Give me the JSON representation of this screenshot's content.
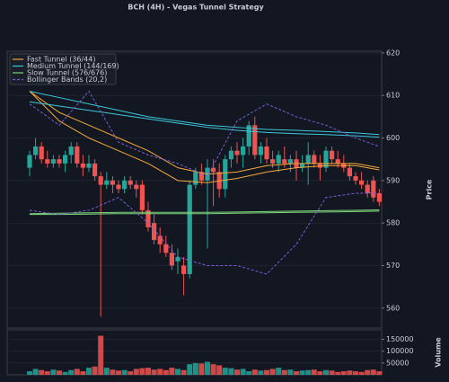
{
  "chart_data": {
    "type": "candlestick",
    "title": "BCH (4H) - Vegas Tunnel Strategy",
    "ylabel": "Price",
    "volume_label": "Volume",
    "up_color": "#26a69a",
    "down_color": "#ef5350",
    "open": [
      593,
      596,
      598,
      595,
      594,
      595,
      594,
      596,
      598,
      594,
      593,
      594,
      591,
      589,
      590,
      589,
      588,
      590,
      589,
      589,
      583,
      580,
      577,
      575,
      573,
      571,
      570,
      568,
      589,
      592,
      590,
      593,
      592,
      588,
      595,
      597,
      596,
      598,
      603,
      596,
      598,
      595,
      594,
      595,
      594,
      595,
      593,
      594,
      596,
      594,
      593,
      597,
      595,
      594,
      593,
      591,
      590,
      589,
      590,
      587
    ],
    "high": [
      597,
      600,
      599,
      597,
      596,
      596,
      597,
      599,
      599,
      596,
      596,
      595,
      592,
      592,
      591,
      590,
      591,
      591,
      590,
      590,
      585,
      582,
      579,
      577,
      575,
      574,
      572,
      590,
      593,
      594,
      595,
      595,
      594,
      596,
      598,
      599,
      600,
      604,
      605,
      599,
      600,
      597,
      597,
      598,
      596,
      597,
      596,
      599,
      597,
      596,
      598,
      598,
      597,
      596,
      594,
      592,
      592,
      590,
      591,
      588
    ],
    "low": [
      591,
      595,
      594,
      593,
      593,
      593,
      592,
      594,
      593,
      591,
      592,
      590,
      558,
      588,
      587,
      587,
      587,
      588,
      586,
      582,
      578,
      575,
      573,
      572,
      569,
      568,
      563,
      567,
      588,
      589,
      574,
      584,
      586,
      586,
      593,
      594,
      593,
      596,
      595,
      594,
      594,
      593,
      592,
      593,
      592,
      590,
      592,
      589,
      593,
      590,
      592,
      594,
      593,
      592,
      590,
      589,
      588,
      586,
      585,
      584
    ],
    "close": [
      596,
      598,
      595,
      594,
      595,
      594,
      596,
      598,
      594,
      593,
      594,
      591,
      589,
      590,
      589,
      588,
      590,
      589,
      588,
      583,
      579,
      576,
      575,
      573,
      570,
      572,
      568,
      589,
      592,
      590,
      593,
      592,
      588,
      595,
      597,
      596,
      598,
      603,
      596,
      598,
      595,
      594,
      596,
      594,
      595,
      593,
      594,
      596,
      594,
      593,
      597,
      595,
      594,
      593,
      591,
      590,
      589,
      587,
      586,
      585
    ],
    "volume": [
      15000,
      25000,
      20000,
      15000,
      22000,
      18000,
      12000,
      20000,
      25000,
      15000,
      30000,
      35000,
      165000,
      30000,
      22000,
      18000,
      20000,
      15000,
      25000,
      28000,
      30000,
      22000,
      25000,
      20000,
      30000,
      25000,
      20000,
      45000,
      50000,
      48000,
      55000,
      45000,
      40000,
      30000,
      28000,
      22000,
      25000,
      15000,
      22000,
      18000,
      20000,
      25000,
      30000,
      20000,
      22000,
      15000,
      18000,
      20000,
      22000,
      15000,
      20000,
      18000,
      12000,
      15000,
      18000,
      15000,
      12000,
      20000,
      22000,
      15000
    ],
    "ylim": [
      555.3,
      620.4
    ],
    "yticks": [
      560,
      570,
      580,
      590,
      600,
      610,
      620
    ],
    "volume_ylim": [
      0,
      190000
    ],
    "volume_ticks": [
      50000,
      100000,
      150000
    ],
    "grid": true,
    "legend": "upper left",
    "overlays": [
      {
        "name": "Fast Tunnel (36/44)",
        "color": "#f5a83a",
        "dash": false,
        "x": [
          0,
          5,
          10,
          15,
          20,
          25,
          30,
          35,
          40,
          45,
          50,
          55,
          59
        ],
        "lines": [
          [
            611,
            606,
            603,
            600,
            597,
            593,
            591.5,
            592,
            593.5,
            594,
            594,
            594,
            593
          ],
          [
            611,
            604,
            600,
            597,
            594,
            590,
            589.5,
            590.5,
            592,
            593,
            593.5,
            593.5,
            592.5
          ]
        ]
      },
      {
        "name": "Medium Tunnel (144/169)",
        "color": "#3cc8dc",
        "dash": false,
        "x": [
          0,
          5,
          10,
          15,
          20,
          25,
          30,
          35,
          40,
          45,
          50,
          55,
          59
        ],
        "lines": [
          [
            611,
            609.5,
            608,
            606.5,
            605,
            604,
            603,
            602.5,
            602,
            601.8,
            601.5,
            601.2,
            600.8
          ],
          [
            608.5,
            607.5,
            606.5,
            605.5,
            604.5,
            603.5,
            602.5,
            601.8,
            601.3,
            601,
            600.8,
            600.5,
            600.2
          ]
        ]
      },
      {
        "name": "Slow Tunnel (576/676)",
        "color": "#7ed37a",
        "dash": false,
        "x": [
          0,
          5,
          10,
          15,
          20,
          25,
          30,
          35,
          40,
          45,
          50,
          55,
          59
        ],
        "lines": [
          [
            582.2,
            582.3,
            582.4,
            582.5,
            582.5,
            582.5,
            582.5,
            582.6,
            582.7,
            582.8,
            582.9,
            583,
            583.1
          ],
          [
            582,
            582,
            582.1,
            582.2,
            582.2,
            582.2,
            582.2,
            582.3,
            582.4,
            582.5,
            582.6,
            582.7,
            582.8
          ]
        ]
      },
      {
        "name": "Bollinger Bands (20,2)",
        "color": "#7b5cd6",
        "dash": true,
        "x": [
          0,
          5,
          10,
          15,
          20,
          25,
          30,
          35,
          40,
          45,
          50,
          55,
          59
        ],
        "lines": [
          [
            608,
            603,
            611,
            599,
            596,
            594,
            591,
            604,
            608,
            605,
            603,
            600,
            598
          ],
          [
            583,
            582,
            583,
            586,
            580,
            572,
            570,
            570,
            568,
            575,
            586,
            587,
            587
          ]
        ]
      }
    ]
  }
}
